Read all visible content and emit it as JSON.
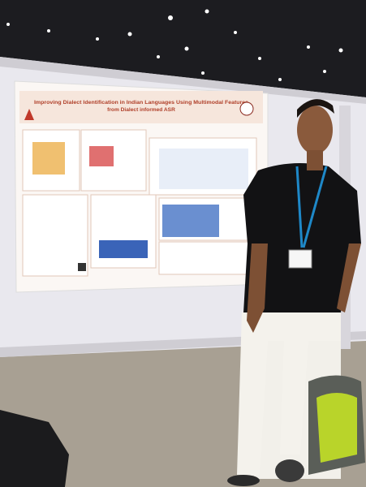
{
  "poster": {
    "title_lines": [
      "Improving Dialect Identification in Indian Languages Using Multimodal Features",
      "from Dialect informed ASR"
    ]
  }
}
